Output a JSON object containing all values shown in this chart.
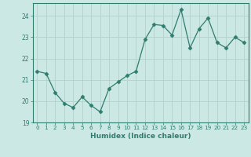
{
  "x": [
    0,
    1,
    2,
    3,
    4,
    5,
    6,
    7,
    8,
    9,
    10,
    11,
    12,
    13,
    14,
    15,
    16,
    17,
    18,
    19,
    20,
    21,
    22,
    23
  ],
  "y": [
    21.4,
    21.3,
    20.4,
    19.9,
    19.7,
    20.2,
    19.8,
    19.5,
    20.6,
    20.9,
    21.2,
    21.4,
    22.9,
    23.6,
    23.55,
    23.1,
    24.3,
    22.5,
    23.4,
    23.9,
    22.75,
    22.5,
    23.0,
    22.75
  ],
  "line_color": "#2e7d6e",
  "marker": "D",
  "marker_size": 2.5,
  "bg_color": "#cce8e4",
  "grid_color": "#b8d4d0",
  "tick_color": "#2e7d6e",
  "xlabel": "Humidex (Indice chaleur)",
  "ylim": [
    19,
    24.6
  ],
  "yticks": [
    19,
    20,
    21,
    22,
    23,
    24
  ],
  "font_color": "#2e7d6e"
}
